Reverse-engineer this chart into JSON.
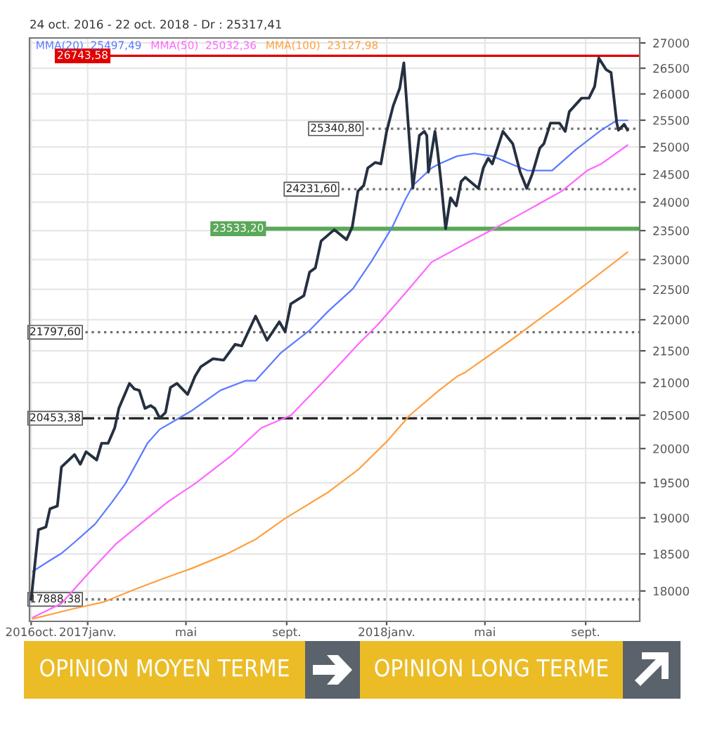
{
  "chart_data": {
    "type": "line",
    "title": "24 oct. 2016 - 22 oct. 2018 - Dr : 25317,41",
    "legend": "top left",
    "log": "y",
    "grid": true,
    "xlim": [
      "2016-10-22",
      "2018-11-06"
    ],
    "ylim": [
      17600,
      27100
    ],
    "yticks": [
      18000,
      18500,
      19000,
      19500,
      20000,
      20500,
      21000,
      21500,
      22000,
      22500,
      23000,
      23500,
      24000,
      24500,
      25000,
      25500,
      26000,
      26500,
      27000
    ],
    "xticks": [
      {
        "value": "2016-10-24",
        "label": "2016oct."
      },
      {
        "value": "2017-01-01",
        "label": "2017janv."
      },
      {
        "value": "2017-05-01",
        "label": "mai"
      },
      {
        "value": "2017-09-01",
        "label": "sept."
      },
      {
        "value": "2018-01-01",
        "label": "2018janv."
      },
      {
        "value": "2018-05-01",
        "label": "mai"
      },
      {
        "value": "2018-09-01",
        "label": "sept."
      }
    ],
    "series": [
      {
        "color": "#253040",
        "x": [
          "2016-10-24",
          "2016-11-02",
          "2016-11-11",
          "2016-11-16",
          "2016-11-25",
          "2016-11-30",
          "2016-12-16",
          "2016-12-23",
          "2016-12-30",
          "2017-01-12",
          "2017-01-18",
          "2017-01-26",
          "2017-02-03",
          "2017-02-08",
          "2017-02-21",
          "2017-02-27",
          "2017-03-05",
          "2017-03-12",
          "2017-03-19",
          "2017-03-24",
          "2017-03-30",
          "2017-04-06",
          "2017-04-12",
          "2017-04-20",
          "2017-05-03",
          "2017-05-12",
          "2017-05-19",
          "2017-06-03",
          "2017-06-16",
          "2017-06-30",
          "2017-07-08",
          "2017-07-25",
          "2017-08-08",
          "2017-08-23",
          "2017-08-30",
          "2017-09-06",
          "2017-09-22",
          "2017-09-29",
          "2017-10-06",
          "2017-10-13",
          "2017-10-29",
          "2017-11-13",
          "2017-11-20",
          "2017-11-27",
          "2017-12-04",
          "2017-12-09",
          "2017-12-18",
          "2017-12-25",
          "2018-01-01",
          "2018-01-09",
          "2018-01-17",
          "2018-01-22",
          "2018-01-27",
          "2018-02-02",
          "2018-02-10",
          "2018-02-16",
          "2018-02-19",
          "2018-02-21",
          "2018-03-01",
          "2018-03-04",
          "2018-03-08",
          "2018-03-14",
          "2018-03-20",
          "2018-03-27",
          "2018-04-02",
          "2018-04-07",
          "2018-04-23",
          "2018-04-29",
          "2018-05-05",
          "2018-05-10",
          "2018-05-23",
          "2018-06-04",
          "2018-06-13",
          "2018-06-21",
          "2018-06-28",
          "2018-07-07",
          "2018-07-12",
          "2018-07-20",
          "2018-07-31",
          "2018-08-07",
          "2018-08-12",
          "2018-08-27",
          "2018-09-05",
          "2018-09-12",
          "2018-09-17",
          "2018-09-26",
          "2018-10-02",
          "2018-10-09",
          "2018-10-11",
          "2018-10-18",
          "2018-10-22"
        ],
        "values": [
          17888,
          18835,
          18873,
          19128,
          19168,
          19730,
          19911,
          19770,
          19953,
          19832,
          20079,
          20079,
          20308,
          20603,
          20988,
          20902,
          20880,
          20603,
          20646,
          20603,
          20455,
          20540,
          20923,
          20988,
          20817,
          21096,
          21246,
          21375,
          21353,
          21602,
          21578,
          22059,
          21670,
          21967,
          21805,
          22259,
          22397,
          22790,
          22860,
          23320,
          23515,
          23344,
          23564,
          24197,
          24296,
          24615,
          24714,
          24689,
          25290,
          25772,
          26111,
          26605,
          25500,
          24250,
          25214,
          25290,
          25214,
          24541,
          25290,
          24950,
          24419,
          23533,
          24078,
          23935,
          24370,
          24444,
          24246,
          24615,
          24791,
          24689,
          25290,
          25061,
          24541,
          24246,
          24514,
          24979,
          25061,
          25445,
          25445,
          25290,
          25661,
          25920,
          25920,
          26147,
          26700,
          26471,
          26415,
          25445,
          25313,
          25423,
          25317
        ]
      },
      {
        "name": "MMA(20)  25497,49",
        "color": "#5b7bff",
        "x": [
          "2016-10-26",
          "2016-11-16",
          "2016-11-30",
          "2016-12-18",
          "2017-01-10",
          "2017-01-31",
          "2017-02-16",
          "2017-03-15",
          "2017-03-30",
          "2017-05-07",
          "2017-06-12",
          "2017-07-13",
          "2017-07-25",
          "2017-08-25",
          "2017-09-29",
          "2017-10-22",
          "2017-11-21",
          "2017-12-14",
          "2018-01-08",
          "2018-01-24",
          "2018-02-02",
          "2018-02-25",
          "2018-03-06",
          "2018-03-28",
          "2018-04-18",
          "2018-05-10",
          "2018-06-04",
          "2018-06-22",
          "2018-07-22",
          "2018-08-20",
          "2018-09-20",
          "2018-10-09",
          "2018-10-22"
        ],
        "values": [
          18262,
          18412,
          18508,
          18680,
          18913,
          19228,
          19487,
          20079,
          20286,
          20560,
          20880,
          21031,
          21031,
          21470,
          21829,
          22144,
          22513,
          22983,
          23564,
          24050,
          24296,
          24615,
          24689,
          24831,
          24881,
          24831,
          24674,
          24568,
          24568,
          24952,
          25313,
          25497,
          25497
        ]
      },
      {
        "name": "MMA(50)  25032,36",
        "color": "#ff66ff",
        "x": [
          "2016-10-26",
          "2016-11-30",
          "2017-01-04",
          "2017-02-05",
          "2017-03-04",
          "2017-04-09",
          "2017-05-12",
          "2017-06-25",
          "2017-08-01",
          "2017-09-06",
          "2017-10-17",
          "2017-11-27",
          "2017-12-21",
          "2018-01-24",
          "2018-02-25",
          "2018-04-07",
          "2018-05-10",
          "2018-06-15",
          "2018-08-03",
          "2018-09-03",
          "2018-09-20",
          "2018-10-22"
        ],
        "values": [
          17651,
          17834,
          18262,
          18643,
          18894,
          19228,
          19487,
          19891,
          20308,
          20497,
          21031,
          21602,
          21917,
          22442,
          22959,
          23269,
          23515,
          23801,
          24197,
          24568,
          24689,
          25032
        ]
      },
      {
        "name": "MMA(100)  23127,98",
        "color": "#ffa040",
        "x": [
          "2016-10-26",
          "2016-12-13",
          "2017-01-20",
          "2017-02-27",
          "2017-03-30",
          "2017-05-07",
          "2017-06-18",
          "2017-07-25",
          "2017-08-30",
          "2017-10-22",
          "2017-11-27",
          "2018-01-01",
          "2018-01-29",
          "2018-03-06",
          "2018-03-28",
          "2018-04-07",
          "2018-06-04",
          "2018-08-03",
          "2018-10-02",
          "2018-10-22"
        ],
        "values": [
          17633,
          17761,
          17852,
          18019,
          18149,
          18299,
          18490,
          18701,
          18992,
          19368,
          19688,
          20102,
          20497,
          20880,
          21096,
          21161,
          21692,
          22282,
          22910,
          23128
        ]
      }
    ],
    "ref_lines": [
      {
        "axis": "y",
        "value": 26743.58,
        "label": "26743,58",
        "color": "#e00000",
        "line_style": "solid"
      },
      {
        "axis": "y",
        "value": 25340.8,
        "label": "25340,80",
        "color": "#707070",
        "line_style": "dotted"
      },
      {
        "axis": "y",
        "value": 24231.6,
        "label": "24231,60",
        "color": "#707070",
        "line_style": "dotted"
      },
      {
        "axis": "y",
        "value": 23533.2,
        "label": "23533,20",
        "color": "#5aa85a",
        "line_style": "solid"
      },
      {
        "axis": "y",
        "value": 21797.6,
        "label": "21797,60",
        "color": "#707070",
        "line_style": "dotted"
      },
      {
        "axis": "y",
        "value": 20453.38,
        "label": "20453,38",
        "color": "#202020",
        "line_style": "dashdot"
      },
      {
        "axis": "y",
        "value": 17888.38,
        "label": "17888,38",
        "color": "#707070",
        "line_style": "dotted"
      }
    ],
    "annotations": [
      "OPINION MOYEN TERME",
      "OPINION LONG TERME"
    ]
  }
}
